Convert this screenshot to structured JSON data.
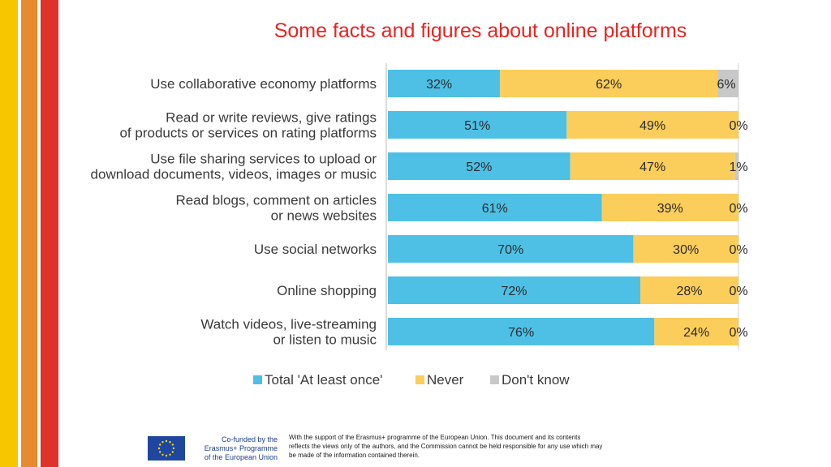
{
  "slide": {
    "title": "Some facts and figures about online platforms",
    "stripe_colors": [
      "#f7c600",
      "#ea8a2e",
      "#e1312b"
    ]
  },
  "chart_data": {
    "type": "bar",
    "orientation": "horizontal",
    "stacked": true,
    "title": "",
    "xlabel": "",
    "ylabel": "",
    "xlim": [
      0,
      100
    ],
    "grid": false,
    "legend_position": "bottom",
    "categories": [
      [
        "Use collaborative economy platforms"
      ],
      [
        "Read or write reviews, give ratings",
        "of products or services on rating platforms"
      ],
      [
        "Use file sharing services to upload or",
        "download documents, videos, images or music"
      ],
      [
        "Read blogs, comment on articles",
        "or news websites"
      ],
      [
        "Use social networks"
      ],
      [
        "Online shopping"
      ],
      [
        "Watch videos, live-streaming",
        "or listen to music"
      ]
    ],
    "series": [
      {
        "name": "Total 'At least once'",
        "color": "#4ec0e6",
        "values": [
          32,
          51,
          52,
          61,
          70,
          72,
          76
        ]
      },
      {
        "name": "Never",
        "color": "#fbcd5a",
        "values": [
          62,
          49,
          47,
          39,
          30,
          28,
          24
        ]
      },
      {
        "name": "Don't know",
        "color": "#c8c8c8",
        "values": [
          6,
          0,
          1,
          0,
          0,
          0,
          0
        ]
      }
    ],
    "unit_suffix": "%"
  },
  "footer": {
    "cofunded_lines": [
      "Co-funded by the",
      "Erasmus+ Programme",
      "of the European Union"
    ],
    "disclaimer_lines": [
      "With the support of the Erasmus+ programme of the European Union. This document and its contents",
      "reflects the views only of the authors, and the Commission cannot be held responsible for any use which may",
      "be made of the information contained therein."
    ],
    "flag_colors": {
      "blue": "#1f47a0",
      "stars": "#ffd500"
    }
  }
}
